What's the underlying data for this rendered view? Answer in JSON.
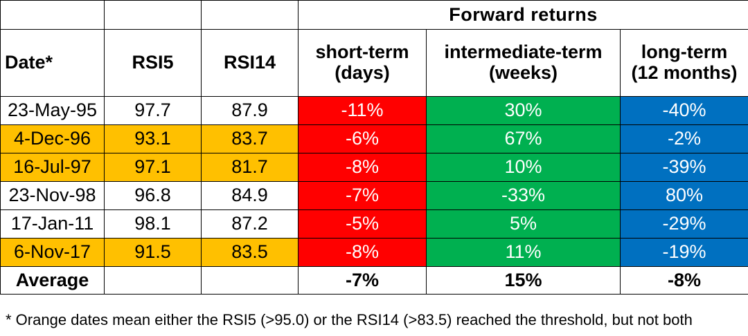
{
  "table": {
    "group_header": "Forward returns",
    "headers": {
      "date": "Date*",
      "rsi5": "RSI5",
      "rsi14": "RSI14",
      "short_line1": "short-term",
      "short_line2": "(days)",
      "inter_line1": "intermediate-term",
      "inter_line2": "(weeks)",
      "long_line1": "long-term",
      "long_line2": "(12 months)"
    },
    "rows": [
      {
        "date": "23-May-95",
        "rsi5": "97.7",
        "rsi14": "87.9",
        "short": "-11%",
        "inter": "30%",
        "long": "-40%",
        "highlight": false
      },
      {
        "date": "4-Dec-96",
        "rsi5": "93.1",
        "rsi14": "83.7",
        "short": "-6%",
        "inter": "67%",
        "long": "-2%",
        "highlight": true
      },
      {
        "date": "16-Jul-97",
        "rsi5": "97.1",
        "rsi14": "81.7",
        "short": "-8%",
        "inter": "10%",
        "long": "-39%",
        "highlight": true
      },
      {
        "date": "23-Nov-98",
        "rsi5": "96.8",
        "rsi14": "84.9",
        "short": "-7%",
        "inter": "-33%",
        "long": "80%",
        "highlight": false
      },
      {
        "date": "17-Jan-11",
        "rsi5": "98.1",
        "rsi14": "87.2",
        "short": "-5%",
        "inter": "5%",
        "long": "-29%",
        "highlight": false
      },
      {
        "date": "6-Nov-17",
        "rsi5": "91.5",
        "rsi14": "83.5",
        "short": "-8%",
        "inter": "11%",
        "long": "-19%",
        "highlight": true
      }
    ],
    "average": {
      "label": "Average",
      "short": "-7%",
      "inter": "15%",
      "long": "-8%"
    }
  },
  "footnote": "* Orange dates mean either the RSI5 (>95.0) or the RSI14 (>83.5) reached the threshold, but not both",
  "colors": {
    "highlight": "#ffc000",
    "short_term": "#ff0000",
    "intermediate_term": "#00b050",
    "long_term": "#0070c0"
  }
}
